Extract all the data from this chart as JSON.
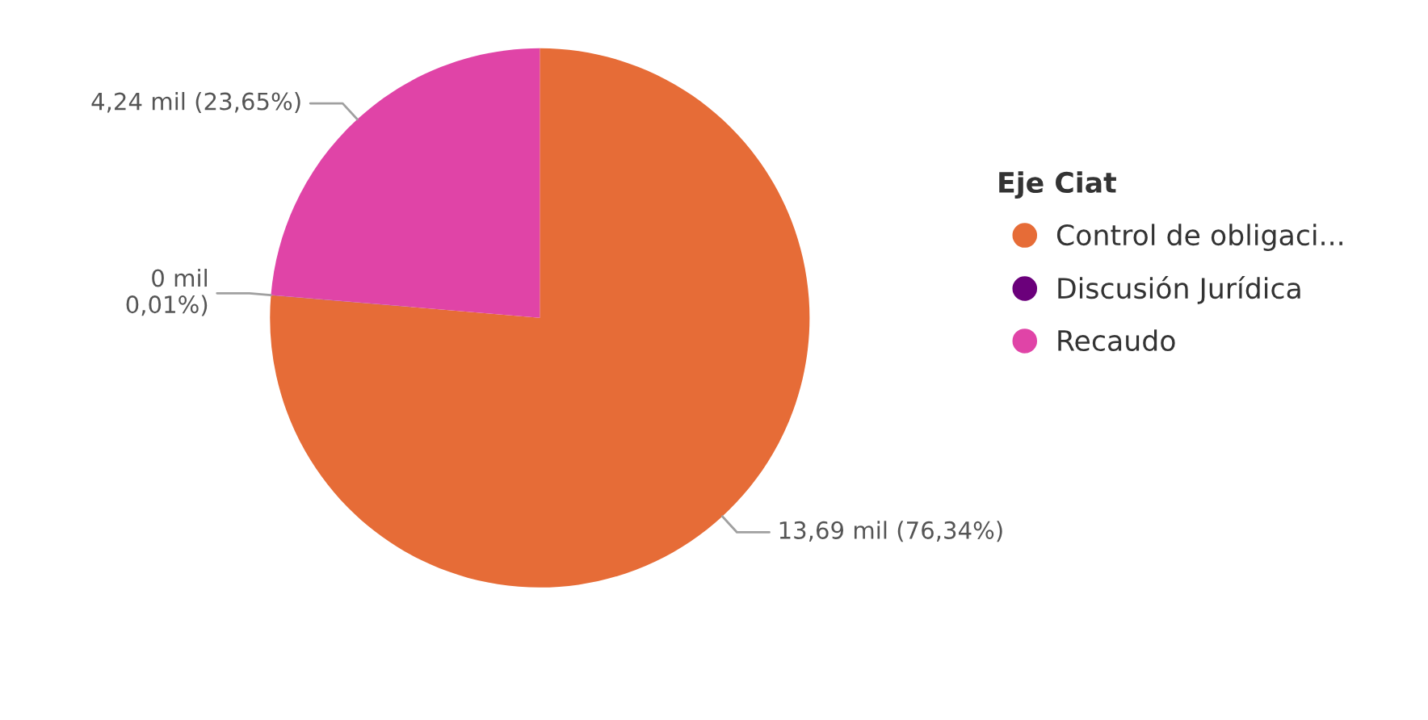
{
  "chart_data": {
    "type": "pie",
    "legend_title": "Eje Ciat",
    "categories": [
      "Control de obligaci...",
      "Discusión Jurídica",
      "Recaudo"
    ],
    "values": [
      76.34,
      0.01,
      23.65
    ],
    "value_labels": [
      "13,69 mil (76,34%)",
      "0 mil\n0,01%)",
      "4,24 mil (23,65%)"
    ],
    "colors": [
      "#e66c37",
      "#6b007b",
      "#e044a7"
    ],
    "legend": "right"
  }
}
